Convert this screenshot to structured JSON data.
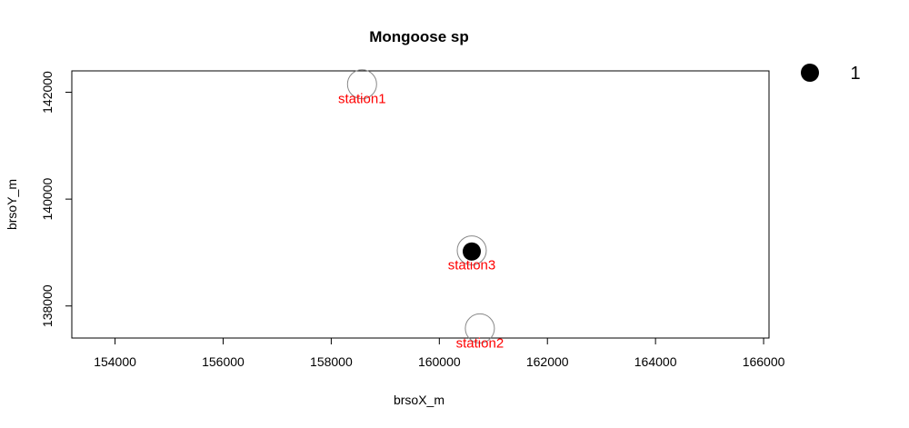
{
  "chart_data": {
    "type": "scatter",
    "title": "Mongoose sp",
    "xlabel": "brsoX_m",
    "ylabel": "brsoY_m",
    "xlim": [
      153200,
      166100
    ],
    "ylim": [
      137400,
      142400
    ],
    "x_ticks": [
      154000,
      156000,
      158000,
      160000,
      162000,
      164000,
      166000
    ],
    "x_tick_labels": [
      "154000",
      "156000",
      "158000",
      "160000",
      "162000",
      "164000",
      "166000"
    ],
    "y_ticks": [
      138000,
      140000,
      142000
    ],
    "y_tick_labels": [
      "138000",
      "140000",
      "142000"
    ],
    "stations": [
      {
        "name": "station1",
        "x": 158570,
        "y": 142150
      },
      {
        "name": "station2",
        "x": 160750,
        "y": 137580
      },
      {
        "name": "station3",
        "x": 160600,
        "y": 139040
      }
    ],
    "detections": [
      {
        "station": "station3",
        "x": 160600,
        "y": 139020,
        "count": 1
      }
    ],
    "legend": {
      "position": "top-right",
      "entries": [
        {
          "label": "1",
          "marker": "filled-circle"
        }
      ]
    },
    "grid": false,
    "colors": {
      "station_label": "#ff0000",
      "station_ring": "#888888",
      "detection": "#000000",
      "axes": "#000000"
    }
  }
}
